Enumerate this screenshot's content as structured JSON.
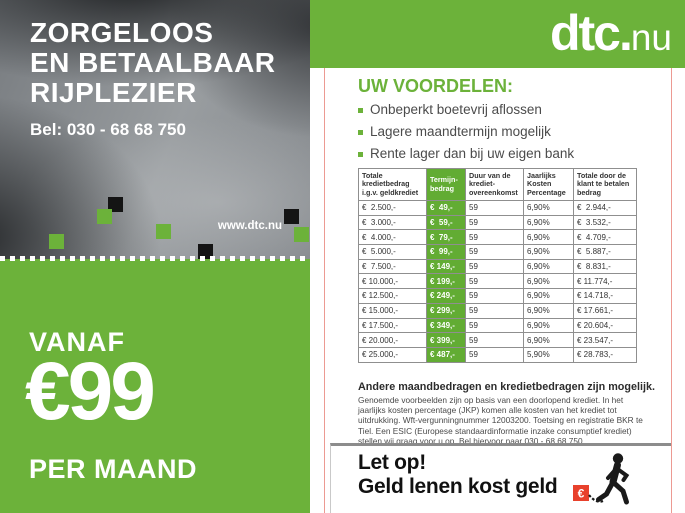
{
  "colors": {
    "brand_green": "#6cb23a",
    "table_green": "#62ac33",
    "crop_line_pink": "#ec9a92",
    "warning_red": "#e8412c"
  },
  "left": {
    "headline_line1": "ZORGELOOS",
    "headline_line2": "EN BETAALBAAR",
    "headline_line3": "RIJPLEZIER",
    "phone": "Bel: 030 - 68 68 750",
    "website": "www.dtc.nu",
    "offer": {
      "label_top": "VANAF",
      "amount": "€99",
      "label_bottom": "PER MAAND"
    }
  },
  "brand": {
    "logo_bold": "dtc.",
    "logo_light": "nu"
  },
  "benefits": {
    "title": "UW VOORDELEN:",
    "items": [
      "Onbeperkt boetevrij aflossen",
      "Lagere maandtermijn mogelijk",
      "Rente lager dan bij uw eigen bank"
    ]
  },
  "table": {
    "headers": [
      "Totale kredietbedrag i.g.v. geldkrediet",
      "Termijn­bedrag",
      "Duur van de krediet­overeenkomst",
      "Jaarlijks Kosten Percentage",
      "Totale door de klant te betalen bedrag"
    ],
    "rows": [
      [
        "€  2.500,-",
        "€  49,-",
        "59",
        "6,90%",
        "€  2.944,-"
      ],
      [
        "€  3.000,-",
        "€  59,-",
        "59",
        "6,90%",
        "€  3.532,-"
      ],
      [
        "€  4.000,-",
        "€  79,-",
        "59",
        "6,90%",
        "€  4.709,-"
      ],
      [
        "€  5.000,-",
        "€  99,-",
        "59",
        "6,90%",
        "€  5.887,-"
      ],
      [
        "€  7.500,-",
        "€ 149,-",
        "59",
        "6,90%",
        "€  8.831,-"
      ],
      [
        "€ 10.000,-",
        "€ 199,-",
        "59",
        "6,90%",
        "€ 11.774,-"
      ],
      [
        "€ 12.500,-",
        "€ 249,-",
        "59",
        "6,90%",
        "€ 14.718,-"
      ],
      [
        "€ 15.000,-",
        "€ 299,-",
        "59",
        "6,90%",
        "€ 17.661,-"
      ],
      [
        "€ 17.500,-",
        "€ 349,-",
        "59",
        "6,90%",
        "€ 20.604,-"
      ],
      [
        "€ 20.000,-",
        "€ 399,-",
        "59",
        "6,90%",
        "€ 23.547,-"
      ],
      [
        "€ 25.000,-",
        "€ 487,-",
        "59",
        "5,90%",
        "€ 28.783,-"
      ]
    ]
  },
  "note": {
    "title": "Andere maandbedragen en kredietbedragen zijn mogelijk.",
    "body": "Genoemde voorbeelden zijn op basis van een doorlopend krediet. In het jaarlijks kosten percentage (JKP) komen alle kosten van het krediet tot uitdrukking. Wft-vergunningnummer 12003200. Toetsing en registratie BKR te Tiel. Een ESIC (Europese standaardinformatie inzake consumptief krediet) stellen wij graag voor u op. Bel hiervoor naar 030 - 68 68 750."
  },
  "warning": {
    "line1": "Let op!",
    "line2": "Geld lenen kost geld",
    "euro_symbol": "€"
  }
}
